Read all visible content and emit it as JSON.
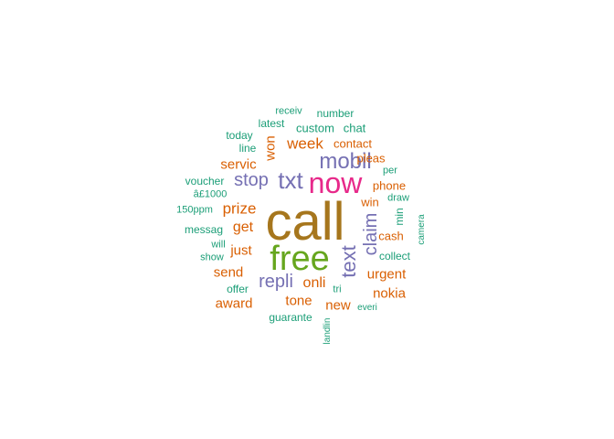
{
  "wordcloud": {
    "palette": {
      "teal": "#1b9e77",
      "orange": "#d95f02",
      "purple": "#7570b3",
      "magenta": "#e7298a",
      "green": "#66a61e",
      "gold": "#a6761d"
    },
    "words": [
      {
        "text": "call",
        "color": "gold"
      },
      {
        "text": "free",
        "color": "green"
      },
      {
        "text": "now",
        "color": "magenta"
      },
      {
        "text": "txt",
        "color": "purple"
      },
      {
        "text": "mobil",
        "color": "purple"
      },
      {
        "text": "stop",
        "color": "purple"
      },
      {
        "text": "text",
        "color": "purple"
      },
      {
        "text": "claim",
        "color": "purple"
      },
      {
        "text": "repli",
        "color": "purple"
      },
      {
        "text": "week",
        "color": "orange"
      },
      {
        "text": "prize",
        "color": "orange"
      },
      {
        "text": "servic",
        "color": "orange"
      },
      {
        "text": "get",
        "color": "orange"
      },
      {
        "text": "just",
        "color": "orange"
      },
      {
        "text": "send",
        "color": "orange"
      },
      {
        "text": "onli",
        "color": "orange"
      },
      {
        "text": "urgent",
        "color": "orange"
      },
      {
        "text": "nokia",
        "color": "orange"
      },
      {
        "text": "award",
        "color": "orange"
      },
      {
        "text": "tone",
        "color": "orange"
      },
      {
        "text": "new",
        "color": "orange"
      },
      {
        "text": "won",
        "color": "orange"
      },
      {
        "text": "contact",
        "color": "orange"
      },
      {
        "text": "pleas",
        "color": "orange"
      },
      {
        "text": "phone",
        "color": "orange"
      },
      {
        "text": "cash",
        "color": "orange"
      },
      {
        "text": "win",
        "color": "orange"
      },
      {
        "text": "custom",
        "color": "teal"
      },
      {
        "text": "chat",
        "color": "teal"
      },
      {
        "text": "number",
        "color": "teal"
      },
      {
        "text": "receiv",
        "color": "teal"
      },
      {
        "text": "latest",
        "color": "teal"
      },
      {
        "text": "today",
        "color": "teal"
      },
      {
        "text": "line",
        "color": "teal"
      },
      {
        "text": "voucher",
        "color": "teal"
      },
      {
        "text": "â£1000",
        "color": "teal"
      },
      {
        "text": "150ppm",
        "color": "teal"
      },
      {
        "text": "messag",
        "color": "teal"
      },
      {
        "text": "will",
        "color": "teal"
      },
      {
        "text": "show",
        "color": "teal"
      },
      {
        "text": "offer",
        "color": "teal"
      },
      {
        "text": "guarante",
        "color": "teal"
      },
      {
        "text": "landlin",
        "color": "teal"
      },
      {
        "text": "tri",
        "color": "teal"
      },
      {
        "text": "everi",
        "color": "teal"
      },
      {
        "text": "collect",
        "color": "teal"
      },
      {
        "text": "min",
        "color": "teal"
      },
      {
        "text": "draw",
        "color": "teal"
      },
      {
        "text": "per",
        "color": "teal"
      },
      {
        "text": "camera",
        "color": "teal"
      }
    ]
  }
}
